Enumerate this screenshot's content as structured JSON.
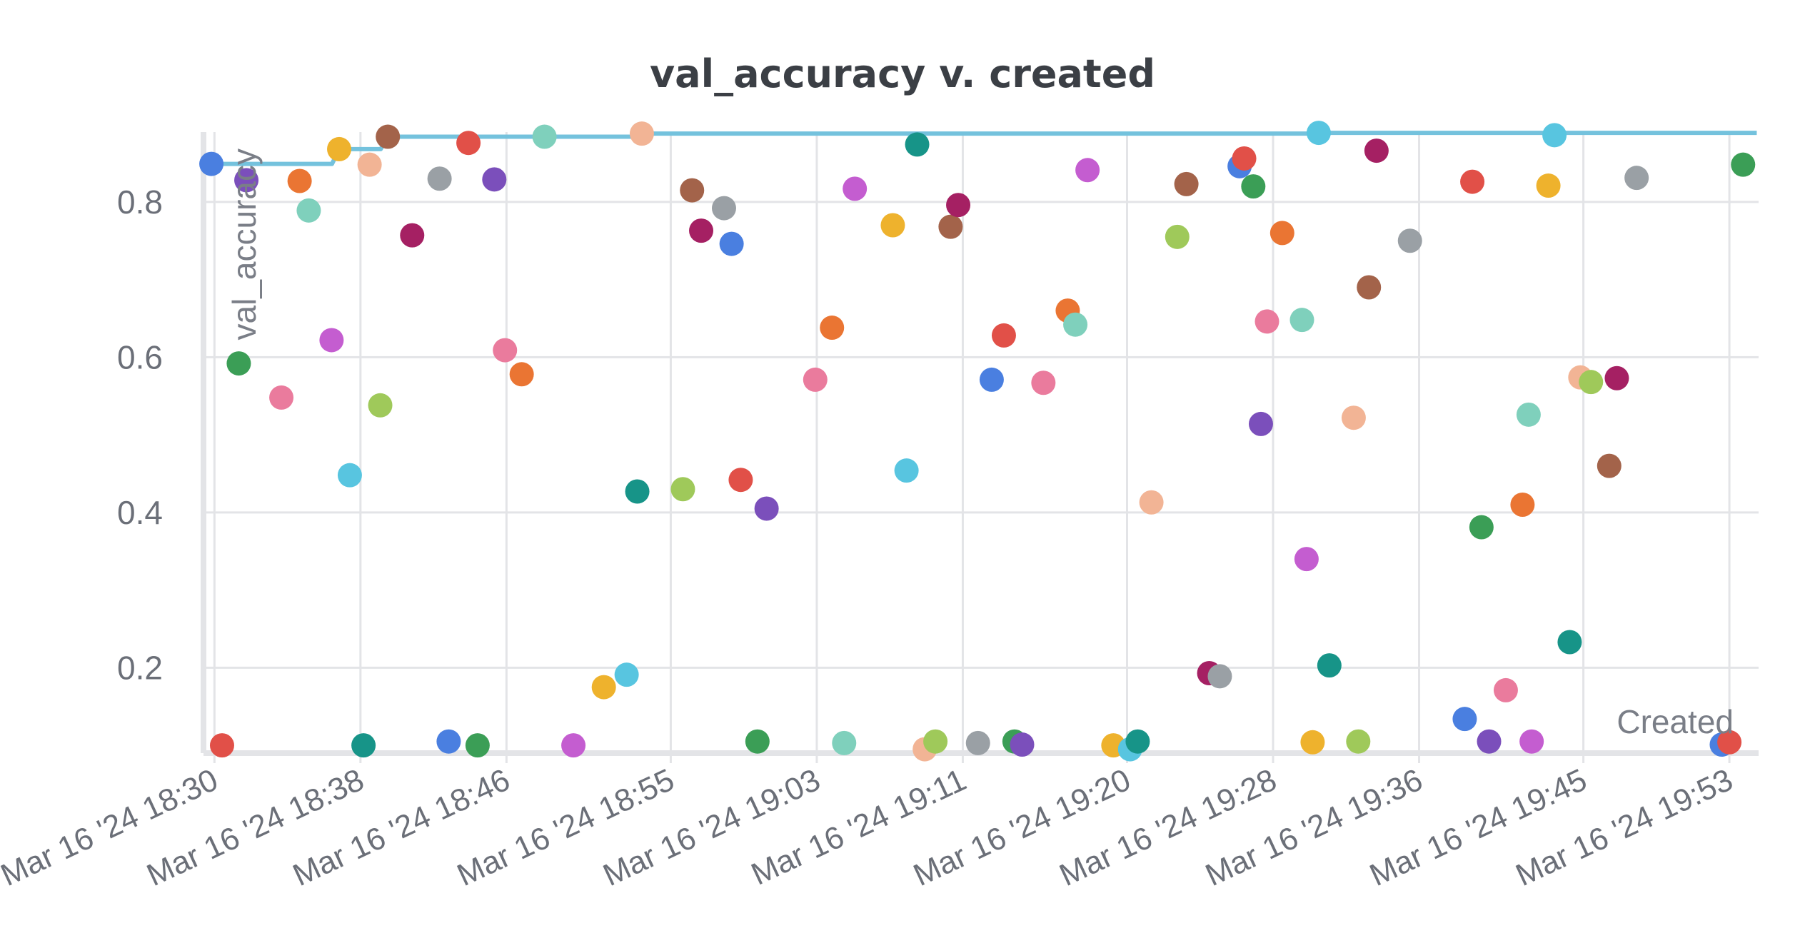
{
  "chart_data": {
    "type": "scatter",
    "title": "val_accuracy v. created",
    "xlabel": "Created",
    "ylabel": "val_accuracy",
    "x_ticks": [
      "Mar 16 '24 18:30",
      "Mar 16 '24 18:38",
      "Mar 16 '24 18:46",
      "Mar 16 '24 18:55",
      "Mar 16 '24 19:03",
      "Mar 16 '24 19:11",
      "Mar 16 '24 19:20",
      "Mar 16 '24 19:28",
      "Mar 16 '24 19:36",
      "Mar 16 '24 19:45",
      "Mar 16 '24 19:53"
    ],
    "xlim": [
      "Mar 16 '24 18:29:24",
      "Mar 16 '24 19:54:36"
    ],
    "y_ticks": [
      "0.2",
      "0.4",
      "0.6",
      "0.8"
    ],
    "ylim": [
      0.09,
      0.89
    ],
    "grid": true,
    "legend": "none",
    "series": [
      {
        "type": "scatter",
        "points": [
          {
            "x": "Mar 16 '24 18:29:50",
            "y": 0.849,
            "color": "#4a7fe0"
          },
          {
            "x": "Mar 16 '24 18:30:25",
            "y": 0.1,
            "color": "#e15048"
          },
          {
            "x": "Mar 16 '24 18:31:20",
            "y": 0.592,
            "color": "#3b9e56"
          },
          {
            "x": "Mar 16 '24 18:31:45",
            "y": 0.828,
            "color": "#7b4fbb"
          },
          {
            "x": "Mar 16 '24 18:33:40",
            "y": 0.548,
            "color": "#ea7b9d"
          },
          {
            "x": "Mar 16 '24 18:34:40",
            "y": 0.827,
            "color": "#ea7533"
          },
          {
            "x": "Mar 16 '24 18:35:10",
            "y": 0.789,
            "color": "#7fd0bc"
          },
          {
            "x": "Mar 16 '24 18:36:25",
            "y": 0.622,
            "color": "#c45dd0"
          },
          {
            "x": "Mar 16 '24 18:36:50",
            "y": 0.868,
            "color": "#eeb22d"
          },
          {
            "x": "Mar 16 '24 18:37:25",
            "y": 0.448,
            "color": "#58c5e0"
          },
          {
            "x": "Mar 16 '24 18:38:10",
            "y": 0.1,
            "color": "#179488"
          },
          {
            "x": "Mar 16 '24 18:38:30",
            "y": 0.848,
            "color": "#f2b495"
          },
          {
            "x": "Mar 16 '24 18:39:05",
            "y": 0.538,
            "color": "#9fc95a"
          },
          {
            "x": "Mar 16 '24 18:39:30",
            "y": 0.884,
            "color": "#a3634a"
          },
          {
            "x": "Mar 16 '24 18:40:50",
            "y": 0.757,
            "color": "#a52063"
          },
          {
            "x": "Mar 16 '24 18:42:20",
            "y": 0.83,
            "color": "#9aa0a5"
          },
          {
            "x": "Mar 16 '24 18:42:50",
            "y": 0.105,
            "color": "#4a7fe0"
          },
          {
            "x": "Mar 16 '24 18:43:55",
            "y": 0.876,
            "color": "#e15048"
          },
          {
            "x": "Mar 16 '24 18:44:25",
            "y": 0.1,
            "color": "#3b9e56"
          },
          {
            "x": "Mar 16 '24 18:45:20",
            "y": 0.829,
            "color": "#7b4fbb"
          },
          {
            "x": "Mar 16 '24 18:45:55",
            "y": 0.609,
            "color": "#ea7b9d"
          },
          {
            "x": "Mar 16 '24 18:46:50",
            "y": 0.578,
            "color": "#ea7533"
          },
          {
            "x": "Mar 16 '24 18:48:05",
            "y": 0.884,
            "color": "#7fd0bc"
          },
          {
            "x": "Mar 16 '24 18:49:40",
            "y": 0.1,
            "color": "#c45dd0"
          },
          {
            "x": "Mar 16 '24 18:51:20",
            "y": 0.175,
            "color": "#eeb22d"
          },
          {
            "x": "Mar 16 '24 18:52:35",
            "y": 0.191,
            "color": "#58c5e0"
          },
          {
            "x": "Mar 16 '24 18:53:10",
            "y": 0.427,
            "color": "#179488"
          },
          {
            "x": "Mar 16 '24 18:53:25",
            "y": 0.888,
            "color": "#f2b495"
          },
          {
            "x": "Mar 16 '24 18:55:40",
            "y": 0.43,
            "color": "#9fc95a"
          },
          {
            "x": "Mar 16 '24 18:56:10",
            "y": 0.815,
            "color": "#a3634a"
          },
          {
            "x": "Mar 16 '24 18:56:40",
            "y": 0.763,
            "color": "#a52063"
          },
          {
            "x": "Mar 16 '24 18:57:55",
            "y": 0.792,
            "color": "#9aa0a5"
          },
          {
            "x": "Mar 16 '24 18:58:20",
            "y": 0.746,
            "color": "#4a7fe0"
          },
          {
            "x": "Mar 16 '24 18:58:50",
            "y": 0.442,
            "color": "#e15048"
          },
          {
            "x": "Mar 16 '24 18:59:45",
            "y": 0.105,
            "color": "#3b9e56"
          },
          {
            "x": "Mar 16 '24 19:00:15",
            "y": 0.405,
            "color": "#7b4fbb"
          },
          {
            "x": "Mar 16 '24 19:02:55",
            "y": 0.571,
            "color": "#ea7b9d"
          },
          {
            "x": "Mar 16 '24 19:03:50",
            "y": 0.638,
            "color": "#ea7533"
          },
          {
            "x": "Mar 16 '24 19:04:30",
            "y": 0.103,
            "color": "#7fd0bc"
          },
          {
            "x": "Mar 16 '24 19:05:05",
            "y": 0.817,
            "color": "#c45dd0"
          },
          {
            "x": "Mar 16 '24 19:07:10",
            "y": 0.77,
            "color": "#eeb22d"
          },
          {
            "x": "Mar 16 '24 19:07:55",
            "y": 0.454,
            "color": "#58c5e0"
          },
          {
            "x": "Mar 16 '24 19:08:30",
            "y": 0.874,
            "color": "#179488"
          },
          {
            "x": "Mar 16 '24 19:08:55",
            "y": 0.095,
            "color": "#f2b495"
          },
          {
            "x": "Mar 16 '24 19:09:30",
            "y": 0.105,
            "color": "#9fc95a"
          },
          {
            "x": "Mar 16 '24 19:10:20",
            "y": 0.768,
            "color": "#a3634a"
          },
          {
            "x": "Mar 16 '24 19:10:45",
            "y": 0.796,
            "color": "#a52063"
          },
          {
            "x": "Mar 16 '24 19:11:50",
            "y": 0.103,
            "color": "#9aa0a5"
          },
          {
            "x": "Mar 16 '24 19:12:35",
            "y": 0.571,
            "color": "#4a7fe0"
          },
          {
            "x": "Mar 16 '24 19:13:15",
            "y": 0.628,
            "color": "#e15048"
          },
          {
            "x": "Mar 16 '24 19:13:50",
            "y": 0.105,
            "color": "#3b9e56"
          },
          {
            "x": "Mar 16 '24 19:14:15",
            "y": 0.101,
            "color": "#7b4fbb"
          },
          {
            "x": "Mar 16 '24 19:15:25",
            "y": 0.567,
            "color": "#ea7b9d"
          },
          {
            "x": "Mar 16 '24 19:16:45",
            "y": 0.66,
            "color": "#ea7533"
          },
          {
            "x": "Mar 16 '24 19:17:10",
            "y": 0.642,
            "color": "#7fd0bc"
          },
          {
            "x": "Mar 16 '24 19:17:50",
            "y": 0.841,
            "color": "#c45dd0"
          },
          {
            "x": "Mar 16 '24 19:19:15",
            "y": 0.1,
            "color": "#eeb22d"
          },
          {
            "x": "Mar 16 '24 19:20:10",
            "y": 0.095,
            "color": "#58c5e0"
          },
          {
            "x": "Mar 16 '24 19:20:35",
            "y": 0.105,
            "color": "#179488"
          },
          {
            "x": "Mar 16 '24 19:21:20",
            "y": 0.413,
            "color": "#f2b495"
          },
          {
            "x": "Mar 16 '24 19:22:45",
            "y": 0.755,
            "color": "#9fc95a"
          },
          {
            "x": "Mar 16 '24 19:23:15",
            "y": 0.823,
            "color": "#a3634a"
          },
          {
            "x": "Mar 16 '24 19:24:30",
            "y": 0.193,
            "color": "#a52063"
          },
          {
            "x": "Mar 16 '24 19:25:05",
            "y": 0.189,
            "color": "#9aa0a5"
          },
          {
            "x": "Mar 16 '24 19:26:10",
            "y": 0.846,
            "color": "#4a7fe0"
          },
          {
            "x": "Mar 16 '24 19:26:25",
            "y": 0.856,
            "color": "#e15048"
          },
          {
            "x": "Mar 16 '24 19:26:55",
            "y": 0.82,
            "color": "#3b9e56"
          },
          {
            "x": "Mar 16 '24 19:27:20",
            "y": 0.514,
            "color": "#7b4fbb"
          },
          {
            "x": "Mar 16 '24 19:27:40",
            "y": 0.646,
            "color": "#ea7b9d"
          },
          {
            "x": "Mar 16 '24 19:28:30",
            "y": 0.76,
            "color": "#ea7533"
          },
          {
            "x": "Mar 16 '24 19:29:35",
            "y": 0.648,
            "color": "#7fd0bc"
          },
          {
            "x": "Mar 16 '24 19:29:50",
            "y": 0.34,
            "color": "#c45dd0"
          },
          {
            "x": "Mar 16 '24 19:30:10",
            "y": 0.104,
            "color": "#eeb22d"
          },
          {
            "x": "Mar 16 '24 19:30:30",
            "y": 0.889,
            "color": "#58c5e0"
          },
          {
            "x": "Mar 16 '24 19:31:05",
            "y": 0.203,
            "color": "#179488"
          },
          {
            "x": "Mar 16 '24 19:32:25",
            "y": 0.522,
            "color": "#f2b495"
          },
          {
            "x": "Mar 16 '24 19:32:40",
            "y": 0.105,
            "color": "#9fc95a"
          },
          {
            "x": "Mar 16 '24 19:33:15",
            "y": 0.69,
            "color": "#a3634a"
          },
          {
            "x": "Mar 16 '24 19:33:40",
            "y": 0.866,
            "color": "#a52063"
          },
          {
            "x": "Mar 16 '24 19:35:30",
            "y": 0.75,
            "color": "#9aa0a5"
          },
          {
            "x": "Mar 16 '24 19:38:30",
            "y": 0.134,
            "color": "#4a7fe0"
          },
          {
            "x": "Mar 16 '24 19:38:55",
            "y": 0.826,
            "color": "#e15048"
          },
          {
            "x": "Mar 16 '24 19:39:25",
            "y": 0.381,
            "color": "#3b9e56"
          },
          {
            "x": "Mar 16 '24 19:39:50",
            "y": 0.105,
            "color": "#7b4fbb"
          },
          {
            "x": "Mar 16 '24 19:40:45",
            "y": 0.171,
            "color": "#ea7b9d"
          },
          {
            "x": "Mar 16 '24 19:41:40",
            "y": 0.41,
            "color": "#ea7533"
          },
          {
            "x": "Mar 16 '24 19:42:00",
            "y": 0.526,
            "color": "#7fd0bc"
          },
          {
            "x": "Mar 16 '24 19:42:10",
            "y": 0.105,
            "color": "#c45dd0"
          },
          {
            "x": "Mar 16 '24 19:43:05",
            "y": 0.821,
            "color": "#eeb22d"
          },
          {
            "x": "Mar 16 '24 19:43:25",
            "y": 0.886,
            "color": "#58c5e0"
          },
          {
            "x": "Mar 16 '24 19:44:15",
            "y": 0.233,
            "color": "#179488"
          },
          {
            "x": "Mar 16 '24 19:44:50",
            "y": 0.574,
            "color": "#f2b495"
          },
          {
            "x": "Mar 16 '24 19:45:25",
            "y": 0.568,
            "color": "#9fc95a"
          },
          {
            "x": "Mar 16 '24 19:46:25",
            "y": 0.46,
            "color": "#a3634a"
          },
          {
            "x": "Mar 16 '24 19:46:50",
            "y": 0.573,
            "color": "#a52063"
          },
          {
            "x": "Mar 16 '24 19:47:55",
            "y": 0.831,
            "color": "#9aa0a5"
          },
          {
            "x": "Mar 16 '24 19:52:35",
            "y": 0.101,
            "color": "#4a7fe0"
          },
          {
            "x": "Mar 16 '24 19:53:00",
            "y": 0.104,
            "color": "#e15048"
          },
          {
            "x": "Mar 16 '24 19:53:45",
            "y": 0.848,
            "color": "#3b9e56"
          }
        ]
      },
      {
        "type": "step",
        "color": "#74c2dd",
        "points": [
          {
            "x": "Mar 16 '24 18:29:50",
            "y": 0.849
          },
          {
            "x": "Mar 16 '24 18:36:50",
            "y": 0.868
          },
          {
            "x": "Mar 16 '24 18:39:30",
            "y": 0.884
          },
          {
            "x": "Mar 16 '24 18:53:25",
            "y": 0.888
          },
          {
            "x": "Mar 16 '24 19:30:30",
            "y": 0.889
          },
          {
            "x": "Mar 16 '24 19:54:30",
            "y": 0.889
          }
        ]
      }
    ]
  }
}
